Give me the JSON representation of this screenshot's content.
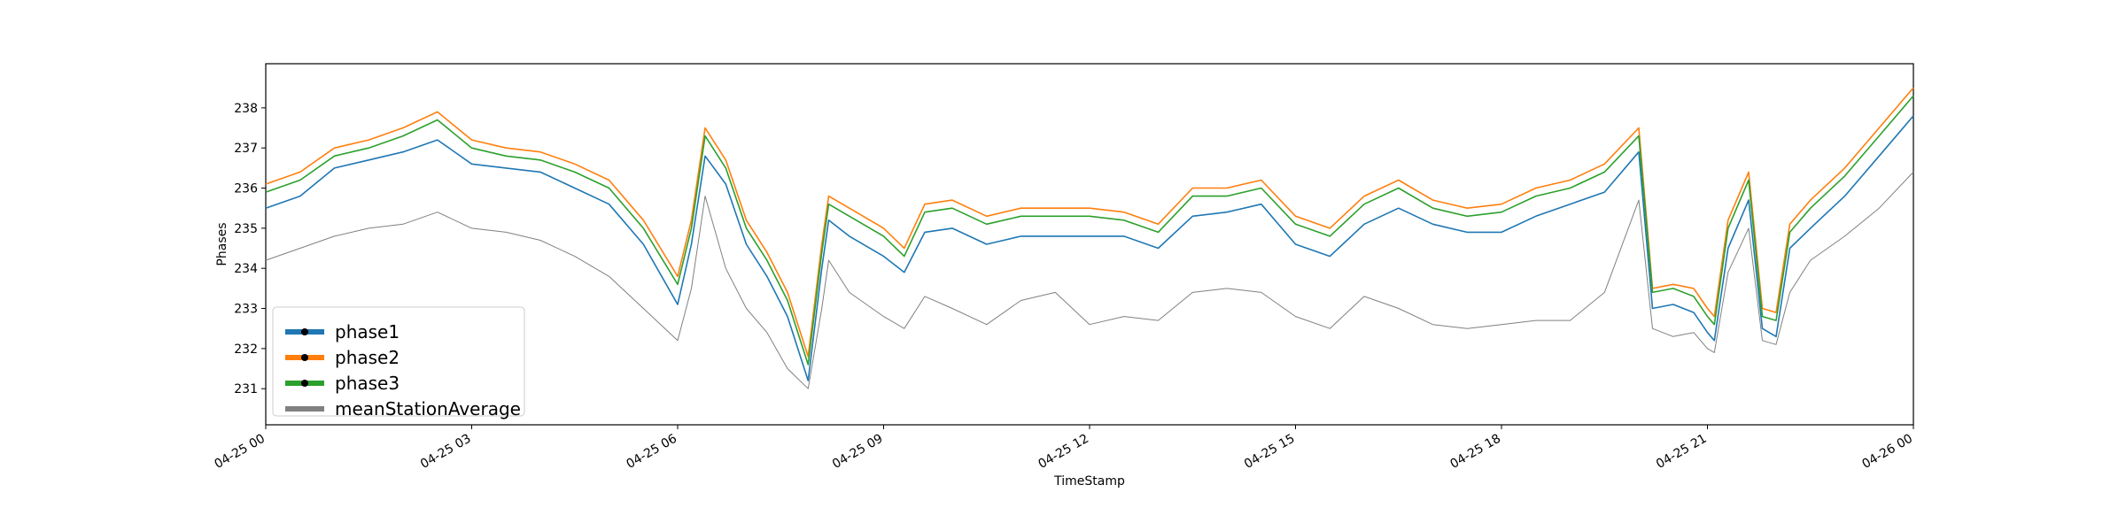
{
  "chart_data": {
    "type": "line",
    "title": "",
    "xlabel": "TimeStamp",
    "ylabel": "Phases",
    "x_ticks": [
      "04-25 00",
      "04-25 03",
      "04-25 06",
      "04-25 09",
      "04-25 12",
      "04-25 15",
      "04-25 18",
      "04-25 21",
      "04-26 00"
    ],
    "x_tick_hours": [
      0,
      3,
      6,
      9,
      12,
      15,
      18,
      21,
      24
    ],
    "y_ticks": [
      231,
      232,
      233,
      234,
      235,
      236,
      237,
      238
    ],
    "xlim_hours": [
      0,
      24
    ],
    "ylim": [
      230.1,
      239.1
    ],
    "grid": false,
    "legend_position": "lower left",
    "series": [
      {
        "name": "phase1",
        "color": "#1f77b4",
        "x_hours": [
          0,
          0.5,
          1,
          1.5,
          2,
          2.5,
          3,
          3.5,
          4,
          4.5,
          5,
          5.5,
          6,
          6.2,
          6.4,
          6.7,
          7,
          7.3,
          7.6,
          7.9,
          8.1,
          8.2,
          8.5,
          9,
          9.3,
          9.6,
          10,
          10.5,
          11,
          11.5,
          12,
          12.5,
          13,
          13.5,
          14,
          14.5,
          15,
          15.5,
          16,
          16.5,
          17,
          17.5,
          18,
          18.5,
          19,
          19.5,
          20,
          20.2,
          20.5,
          20.8,
          21,
          21.1,
          21.3,
          21.6,
          21.8,
          22,
          22.2,
          22.5,
          23,
          23.5,
          24
        ],
        "values": [
          235.5,
          235.8,
          236.5,
          236.7,
          236.9,
          237.2,
          236.6,
          236.5,
          236.4,
          236.0,
          235.6,
          234.6,
          233.1,
          234.6,
          236.8,
          236.1,
          234.6,
          233.8,
          232.8,
          231.2,
          234.0,
          235.2,
          234.8,
          234.3,
          233.9,
          234.9,
          235.0,
          234.6,
          234.8,
          234.8,
          234.8,
          234.8,
          234.5,
          235.3,
          235.4,
          235.6,
          234.6,
          234.3,
          235.1,
          235.5,
          235.1,
          234.9,
          234.9,
          235.3,
          235.6,
          235.9,
          236.9,
          233.0,
          233.1,
          232.9,
          232.4,
          232.2,
          234.5,
          235.7,
          232.5,
          232.3,
          234.5,
          235.0,
          235.8,
          236.8,
          237.8
        ]
      },
      {
        "name": "phase2",
        "color": "#ff7f0e",
        "x_hours": [
          0,
          0.5,
          1,
          1.5,
          2,
          2.5,
          3,
          3.5,
          4,
          4.5,
          5,
          5.5,
          6,
          6.2,
          6.4,
          6.7,
          7,
          7.3,
          7.6,
          7.9,
          8.1,
          8.2,
          8.5,
          9,
          9.3,
          9.6,
          10,
          10.5,
          11,
          11.5,
          12,
          12.5,
          13,
          13.5,
          14,
          14.5,
          15,
          15.5,
          16,
          16.5,
          17,
          17.5,
          18,
          18.5,
          19,
          19.5,
          20,
          20.2,
          20.5,
          20.8,
          21,
          21.1,
          21.3,
          21.6,
          21.8,
          22,
          22.2,
          22.5,
          23,
          23.5,
          24
        ],
        "values": [
          236.1,
          236.4,
          237.0,
          237.2,
          237.5,
          237.9,
          237.2,
          237.0,
          236.9,
          236.6,
          236.2,
          235.2,
          233.8,
          235.2,
          237.5,
          236.7,
          235.2,
          234.4,
          233.4,
          231.8,
          234.6,
          235.8,
          235.5,
          235.0,
          234.5,
          235.6,
          235.7,
          235.3,
          235.5,
          235.5,
          235.5,
          235.4,
          235.1,
          236.0,
          236.0,
          236.2,
          235.3,
          235.0,
          235.8,
          236.2,
          235.7,
          235.5,
          235.6,
          236.0,
          236.2,
          236.6,
          237.5,
          233.5,
          233.6,
          233.5,
          233.0,
          232.8,
          235.2,
          236.4,
          233.0,
          232.9,
          235.1,
          235.7,
          236.5,
          237.5,
          238.5
        ]
      },
      {
        "name": "phase3",
        "color": "#2ca02c",
        "x_hours": [
          0,
          0.5,
          1,
          1.5,
          2,
          2.5,
          3,
          3.5,
          4,
          4.5,
          5,
          5.5,
          6,
          6.2,
          6.4,
          6.7,
          7,
          7.3,
          7.6,
          7.9,
          8.1,
          8.2,
          8.5,
          9,
          9.3,
          9.6,
          10,
          10.5,
          11,
          11.5,
          12,
          12.5,
          13,
          13.5,
          14,
          14.5,
          15,
          15.5,
          16,
          16.5,
          17,
          17.5,
          18,
          18.5,
          19,
          19.5,
          20,
          20.2,
          20.5,
          20.8,
          21,
          21.1,
          21.3,
          21.6,
          21.8,
          22,
          22.2,
          22.5,
          23,
          23.5,
          24
        ],
        "values": [
          235.9,
          236.2,
          236.8,
          237.0,
          237.3,
          237.7,
          237.0,
          236.8,
          236.7,
          236.4,
          236.0,
          235.0,
          233.6,
          235.0,
          237.3,
          236.5,
          235.0,
          234.2,
          233.2,
          231.6,
          234.4,
          235.6,
          235.3,
          234.8,
          234.3,
          235.4,
          235.5,
          235.1,
          235.3,
          235.3,
          235.3,
          235.2,
          234.9,
          235.8,
          235.8,
          236.0,
          235.1,
          234.8,
          235.6,
          236.0,
          235.5,
          235.3,
          235.4,
          235.8,
          236.0,
          236.4,
          237.3,
          233.4,
          233.5,
          233.3,
          232.8,
          232.6,
          235.0,
          236.2,
          232.8,
          232.7,
          234.9,
          235.5,
          236.3,
          237.3,
          238.3
        ]
      },
      {
        "name": "meanStationAverage",
        "color": "#808080",
        "x_hours": [
          0,
          0.5,
          1,
          1.5,
          2,
          2.5,
          3,
          3.5,
          4,
          4.5,
          5,
          5.5,
          6,
          6.2,
          6.4,
          6.7,
          7,
          7.3,
          7.6,
          7.9,
          8.1,
          8.2,
          8.5,
          9,
          9.3,
          9.6,
          10,
          10.5,
          11,
          11.5,
          12,
          12.5,
          13,
          13.5,
          14,
          14.5,
          15,
          15.5,
          16,
          16.5,
          17,
          17.5,
          18,
          18.5,
          19,
          19.5,
          20,
          20.2,
          20.5,
          20.8,
          21,
          21.1,
          21.3,
          21.6,
          21.8,
          22,
          22.2,
          22.5,
          23,
          23.5,
          24
        ],
        "values": [
          234.2,
          234.5,
          234.8,
          235.0,
          235.1,
          235.4,
          235.0,
          234.9,
          234.7,
          234.3,
          233.8,
          233.0,
          232.2,
          233.5,
          235.8,
          234.0,
          233.0,
          232.4,
          231.5,
          231.0,
          233.0,
          234.2,
          233.4,
          232.8,
          232.5,
          233.3,
          233.0,
          232.6,
          233.2,
          233.4,
          232.6,
          232.8,
          232.7,
          233.4,
          233.5,
          233.4,
          232.8,
          232.5,
          233.3,
          233.0,
          232.6,
          232.5,
          232.6,
          232.7,
          232.7,
          233.4,
          235.7,
          232.5,
          232.3,
          232.4,
          232.0,
          231.9,
          233.9,
          235.0,
          232.2,
          232.1,
          233.4,
          234.2,
          234.8,
          235.5,
          236.4
        ]
      }
    ],
    "colors": {
      "phase1": "#1f77b4",
      "phase2": "#ff7f0e",
      "phase3": "#2ca02c",
      "meanStationAverage": "#808080",
      "marker": "#000000"
    }
  }
}
